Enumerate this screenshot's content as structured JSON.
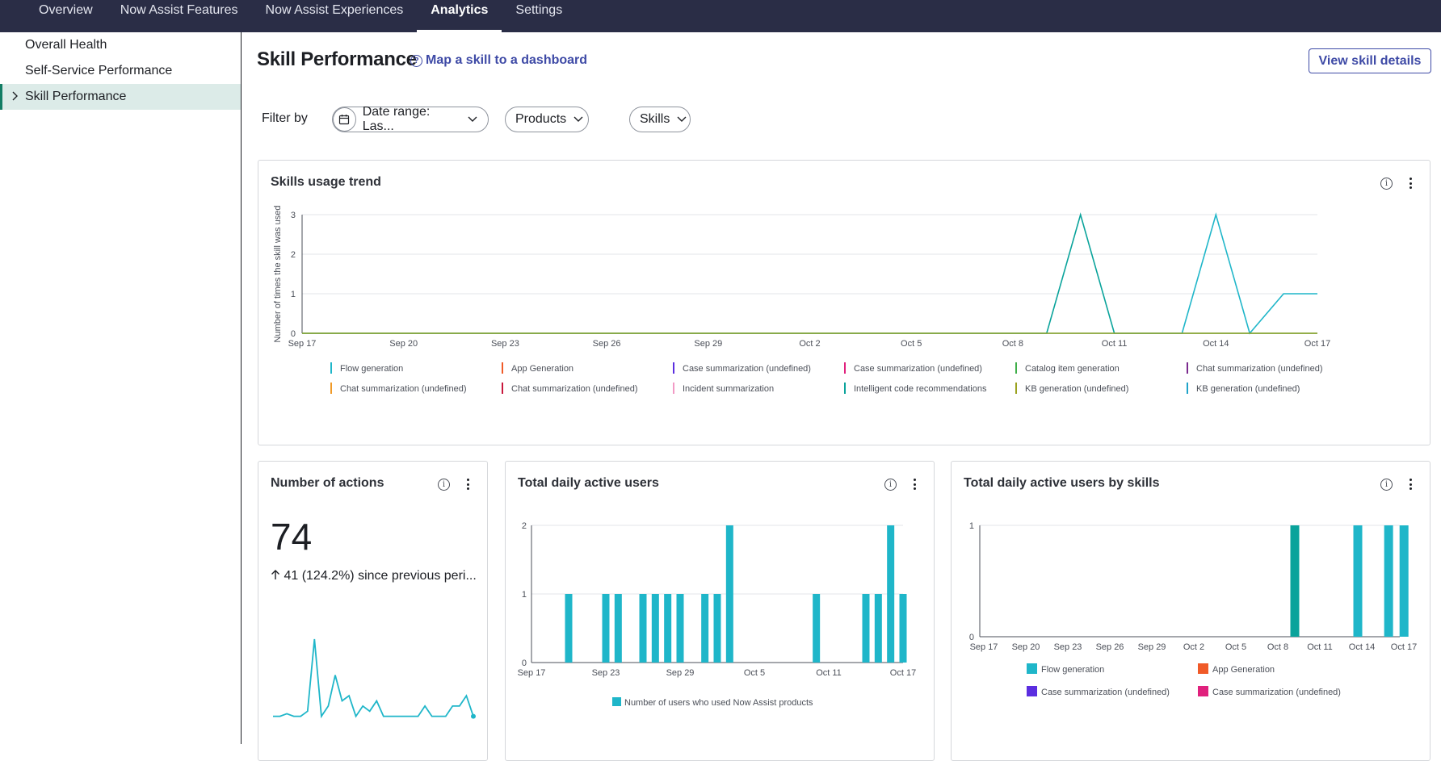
{
  "topnav": {
    "tabs": [
      {
        "label": "Overview",
        "active": false
      },
      {
        "label": "Now Assist Features",
        "active": false
      },
      {
        "label": "Now Assist Experiences",
        "active": false
      },
      {
        "label": "Analytics",
        "active": true
      },
      {
        "label": "Settings",
        "active": false
      }
    ]
  },
  "sidebar": {
    "items": [
      {
        "label": "Overall Health",
        "active": false
      },
      {
        "label": "Self-Service Performance",
        "active": false
      },
      {
        "label": "Skill Performance",
        "active": true
      }
    ]
  },
  "page": {
    "title": "Skill Performance",
    "help_link": "Map a skill to a dashboard",
    "view_details": "View skill details"
  },
  "filters": {
    "label": "Filter by",
    "date_range": "Date range: Las...",
    "products": "Products",
    "skills": "Skills"
  },
  "colors": {
    "accent": "#3e4aa6",
    "teal": "#1fb6c9",
    "dark_teal": "#0aa39b",
    "olive": "#9aa21f"
  },
  "usage_trend": {
    "title": "Skills usage trend",
    "legend": [
      {
        "name": "Flow generation",
        "color": "#1fb6c9"
      },
      {
        "name": "App Generation",
        "color": "#f05a28"
      },
      {
        "name": "Case summarization (undefined)",
        "color": "#5b2ee0"
      },
      {
        "name": "Case summarization (undefined)",
        "color": "#e0217d"
      },
      {
        "name": "Catalog item generation",
        "color": "#3fae49"
      },
      {
        "name": "Chat summarization (undefined)",
        "color": "#7b2a8e"
      },
      {
        "name": "Chat summarization (undefined)",
        "color": "#f09a28"
      },
      {
        "name": "Chat summarization (undefined)",
        "color": "#c8173c"
      },
      {
        "name": "Incident summarization",
        "color": "#f29ac5"
      },
      {
        "name": "Intelligent code recommendations",
        "color": "#0aa39b"
      },
      {
        "name": "KB generation (undefined)",
        "color": "#9aa21f"
      },
      {
        "name": "KB generation (undefined)",
        "color": "#1fa3c9"
      }
    ]
  },
  "actions": {
    "title": "Number of actions",
    "value": "74",
    "delta": "41 (124.2%) since previous peri..."
  },
  "daily_users": {
    "title": "Total daily active users",
    "legend": "Number of users who used Now Assist products"
  },
  "users_by_skills": {
    "title": "Total daily active users by skills",
    "legend": [
      {
        "name": "Flow generation",
        "color": "#1fb6c9"
      },
      {
        "name": "App Generation",
        "color": "#f05a28"
      },
      {
        "name": "Case summarization (undefined)",
        "color": "#5b2ee0"
      },
      {
        "name": "Case summarization (undefined)",
        "color": "#e0217d"
      }
    ]
  },
  "chart_data": [
    {
      "type": "line",
      "title": "Skills usage trend",
      "ylabel": "Number of times the skill was used",
      "xlabel": "",
      "x_ticks": [
        "Sep 17",
        "Sep 20",
        "Sep 23",
        "Sep 26",
        "Sep 29",
        "Oct 2",
        "Oct 5",
        "Oct 8",
        "Oct 11",
        "Oct 14",
        "Oct 17"
      ],
      "y_ticks": [
        "0",
        "1",
        "2",
        "3"
      ],
      "ylim": [
        0,
        3
      ],
      "x_days": 30,
      "series": [
        {
          "name": "Intelligent code recommendations",
          "color": "#0aa39b",
          "points": [
            [
              0,
              0
            ],
            [
              22,
              0
            ],
            [
              23,
              3
            ],
            [
              24,
              0
            ],
            [
              30,
              0
            ]
          ]
        },
        {
          "name": "Flow generation",
          "color": "#1fb6c9",
          "points": [
            [
              0,
              0
            ],
            [
              26,
              0
            ],
            [
              27,
              3
            ],
            [
              28,
              0
            ],
            [
              29,
              1
            ],
            [
              30,
              1
            ]
          ]
        },
        {
          "name": "KB generation (undefined)",
          "color": "#9aa21f",
          "points": [
            [
              0,
              0
            ],
            [
              30,
              0
            ]
          ]
        }
      ]
    },
    {
      "type": "line",
      "title": "Number of actions",
      "values": [
        1,
        1,
        1.5,
        1,
        1,
        2,
        16,
        1,
        3,
        9,
        4,
        5,
        1,
        3,
        2,
        4,
        1,
        1,
        1,
        1,
        1,
        1,
        3,
        1,
        1,
        1,
        3,
        3,
        5,
        1
      ]
    },
    {
      "type": "bar",
      "title": "Total daily active users",
      "x_ticks": [
        "Sep 17",
        "Sep 23",
        "Sep 29",
        "Oct 5",
        "Oct 11",
        "Oct 17"
      ],
      "y_ticks": [
        "0",
        "1",
        "2"
      ],
      "ylim": [
        0,
        2
      ],
      "x_days": 30,
      "series": [
        {
          "name": "Number of users who used Now Assist products",
          "color": "#1fb6c9",
          "bars": [
            [
              3,
              1
            ],
            [
              6,
              1
            ],
            [
              7,
              1
            ],
            [
              9,
              1
            ],
            [
              10,
              1
            ],
            [
              11,
              1
            ],
            [
              12,
              1
            ],
            [
              14,
              1
            ],
            [
              15,
              1
            ],
            [
              16,
              2
            ],
            [
              23,
              1
            ],
            [
              27,
              1
            ],
            [
              28,
              1
            ],
            [
              29,
              2
            ],
            [
              30,
              1
            ]
          ]
        }
      ]
    },
    {
      "type": "bar",
      "title": "Total daily active users by skills",
      "x_ticks": [
        "Sep 17",
        "Sep 20",
        "Sep 23",
        "Sep 26",
        "Sep 29",
        "Oct 2",
        "Oct 5",
        "Oct 8",
        "Oct 11",
        "Oct 14",
        "Oct 17"
      ],
      "y_ticks": [
        "0",
        "1"
      ],
      "ylim": [
        0,
        1
      ],
      "x_days": 30,
      "bars": [
        {
          "day": 22.5,
          "value": 1,
          "color": "#0aa39b"
        },
        {
          "day": 27,
          "value": 1,
          "color": "#1fb6c9"
        },
        {
          "day": 29.2,
          "value": 1,
          "color": "#1fb6c9"
        },
        {
          "day": 30.3,
          "value": 1,
          "color": "#1fb6c9"
        }
      ]
    }
  ]
}
